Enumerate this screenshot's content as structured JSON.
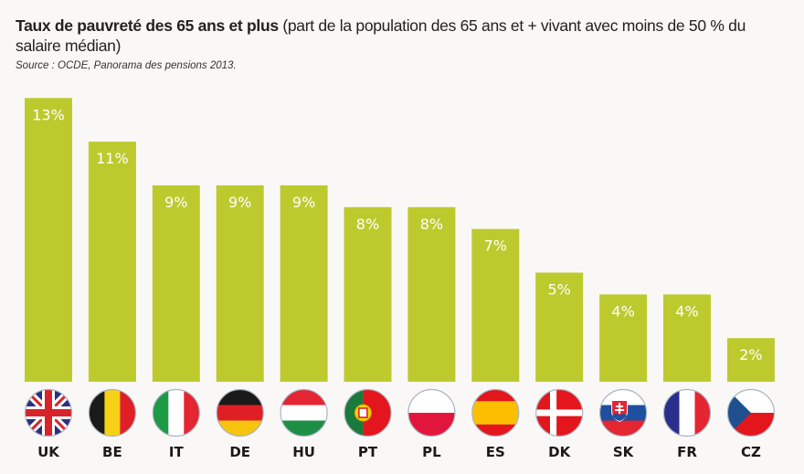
{
  "title": {
    "bold": "Taux de pauvreté des 65 ans et plus",
    "rest": " (part de la population des 65 ans et + vivant avec moins de 50 % du salaire médian)"
  },
  "source": "Source : OCDE, Panorama des pensions 2013.",
  "colors": {
    "bar": "#bdca2d",
    "background": "#faf8f6",
    "value_text": "#ffffff"
  },
  "chart_data": {
    "type": "bar",
    "title": "Taux de pauvreté des 65 ans et plus (part de la population des 65 ans et + vivant avec moins de 50 % du salaire médian)",
    "xlabel": "",
    "ylabel": "",
    "ylim": [
      0,
      13
    ],
    "grid": false,
    "categories": [
      "UK",
      "BE",
      "IT",
      "DE",
      "HU",
      "PT",
      "PL",
      "ES",
      "DK",
      "SK",
      "FR",
      "CZ"
    ],
    "values": [
      13,
      11,
      9,
      9,
      9,
      8,
      8,
      7,
      5,
      4,
      4,
      2
    ],
    "labels": [
      "13%",
      "11%",
      "9%",
      "9%",
      "9%",
      "8%",
      "8%",
      "7%",
      "5%",
      "4%",
      "4%",
      "2%"
    ],
    "flags": [
      "uk-flag",
      "belgium-flag",
      "italy-flag",
      "germany-flag",
      "hungary-flag",
      "portugal-flag",
      "poland-flag",
      "spain-flag",
      "denmark-flag",
      "slovakia-flag",
      "france-flag",
      "czech-flag"
    ]
  }
}
